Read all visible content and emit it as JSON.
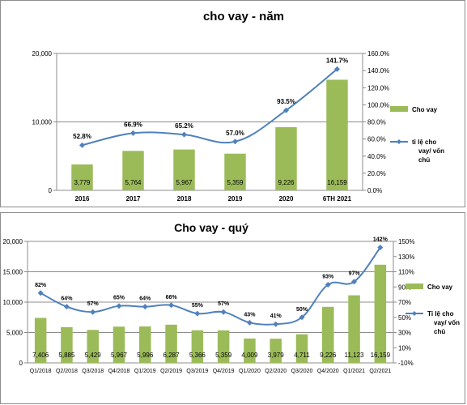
{
  "chart_data": [
    {
      "type": "bar",
      "title": "cho vay - năm",
      "categories": [
        "2016",
        "2017",
        "2018",
        "2019",
        "2020",
        "6TH 2021"
      ],
      "series": [
        {
          "name": "Cho vay",
          "type": "bar",
          "axis": "left",
          "values": [
            3779,
            5764,
            5967,
            5359,
            9226,
            16159
          ],
          "labels": [
            "3,779",
            "5,764",
            "5,967",
            "5,359",
            "9,226",
            "16,159"
          ]
        },
        {
          "name": "tỉ lệ cho vay/ vốn chủ",
          "type": "line",
          "axis": "right",
          "values": [
            52.8,
            66.9,
            65.2,
            57.0,
            93.5,
            141.7
          ],
          "labels": [
            "52.8%",
            "66.9%",
            "65.2%",
            "57.0%",
            "93.5%",
            "141.7%"
          ]
        }
      ],
      "y_left": {
        "min": 0,
        "max": 20000,
        "ticks": [
          "0",
          "10,000",
          "20,000"
        ]
      },
      "y_right": {
        "min": 0,
        "max": 160,
        "ticks": [
          "0.0%",
          "20.0%",
          "40.0%",
          "60.0%",
          "80.0%",
          "100.0%",
          "120.0%",
          "140.0%",
          "160.0%"
        ]
      },
      "legend_lines": [
        [
          "Cho vay"
        ],
        [
          "tỉ lệ cho",
          "vay/ vốn",
          "chủ"
        ]
      ],
      "legend_position": "right",
      "colors": {
        "bar": "#9bbb59",
        "line": "#4f81bd"
      }
    },
    {
      "type": "bar",
      "title": "Cho vay - quý",
      "categories": [
        "Q1/2018",
        "Q2/2018",
        "Q3/2018",
        "Q4/2018",
        "Q1/2019",
        "Q2/2019",
        "Q3/2019",
        "Q4/2019",
        "Q1/2020",
        "Q2/2020",
        "Q3/2020",
        "Q4/2020",
        "Q1/2021",
        "Q2/2021"
      ],
      "series": [
        {
          "name": "Cho vay",
          "type": "bar",
          "axis": "left",
          "values": [
            7406,
            5885,
            5429,
            5967,
            5996,
            6287,
            5366,
            5359,
            4009,
            3979,
            4711,
            9226,
            11123,
            16159
          ],
          "labels": [
            "7,406",
            "5,885",
            "5,429",
            "5,967",
            "5,996",
            "6,287",
            "5,366",
            "5,359",
            "4,009",
            "3,979",
            "4,711",
            "9,226",
            "11,123",
            "16,159"
          ]
        },
        {
          "name": "Tỉ lệ cho vay/ vốn chủ",
          "type": "line",
          "axis": "right",
          "values": [
            82,
            64,
            57,
            65,
            64,
            66,
            55,
            57,
            43,
            41,
            50,
            93,
            97,
            142
          ],
          "labels": [
            "82%",
            "64%",
            "57%",
            "65%",
            "64%",
            "66%",
            "55%",
            "57%",
            "43%",
            "41%",
            "50%",
            "93%",
            "97%",
            "142%"
          ]
        }
      ],
      "y_left": {
        "min": 0,
        "max": 20000,
        "ticks": [
          "0",
          "5,000",
          "10,000",
          "15,000",
          "20,000"
        ]
      },
      "y_right": {
        "min": -10,
        "max": 150,
        "ticks": [
          "-10%",
          "10%",
          "30%",
          "50%",
          "70%",
          "90%",
          "110%",
          "130%",
          "150%"
        ]
      },
      "legend_lines": [
        [
          "Cho vay"
        ],
        [
          "Tỉ lệ cho",
          "vay/ vốn",
          "chủ"
        ]
      ],
      "legend_position": "right",
      "colors": {
        "bar": "#9bbb59",
        "line": "#4f81bd"
      }
    }
  ]
}
